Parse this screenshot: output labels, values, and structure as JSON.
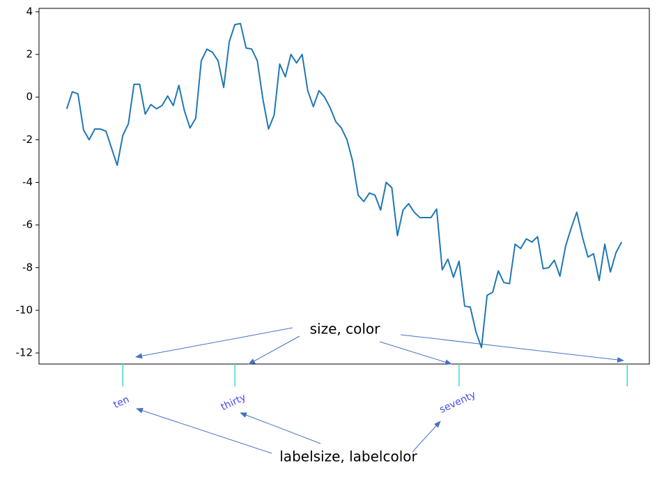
{
  "chart_data": {
    "type": "line",
    "x": [
      0,
      1,
      2,
      3,
      4,
      5,
      6,
      7,
      8,
      9,
      10,
      11,
      12,
      13,
      14,
      15,
      16,
      17,
      18,
      19,
      20,
      21,
      22,
      23,
      24,
      25,
      26,
      27,
      28,
      29,
      30,
      31,
      32,
      33,
      34,
      35,
      36,
      37,
      38,
      39,
      40,
      41,
      42,
      43,
      44,
      45,
      46,
      47,
      48,
      49,
      50,
      51,
      52,
      53,
      54,
      55,
      56,
      57,
      58,
      59,
      60,
      61,
      62,
      63,
      64,
      65,
      66,
      67,
      68,
      69,
      70,
      71,
      72,
      73,
      74,
      75,
      76,
      77,
      78,
      79,
      80,
      81,
      82,
      83,
      84,
      85,
      86,
      87,
      88,
      89,
      90,
      91,
      92,
      93,
      94,
      95,
      96,
      97,
      98,
      99
    ],
    "series": [
      {
        "color": "#1f77b4",
        "values": [
          -0.55,
          0.25,
          0.15,
          -1.55,
          -2.0,
          -1.5,
          -1.5,
          -1.6,
          -2.4,
          -3.2,
          -1.8,
          -1.25,
          0.6,
          0.6,
          -0.8,
          -0.35,
          -0.55,
          -0.4,
          0.05,
          -0.4,
          0.55,
          -0.65,
          -1.45,
          -1.0,
          1.7,
          2.25,
          2.1,
          1.7,
          0.45,
          2.6,
          3.4,
          3.45,
          2.3,
          2.25,
          1.7,
          -0.1,
          -1.5,
          -0.85,
          1.55,
          0.95,
          2.0,
          1.6,
          2.0,
          0.3,
          -0.45,
          0.3,
          0.0,
          -0.5,
          -1.15,
          -1.45,
          -2.0,
          -3.0,
          -4.6,
          -4.9,
          -4.5,
          -4.6,
          -5.3,
          -4.0,
          -4.25,
          -6.5,
          -5.3,
          -5.0,
          -5.4,
          -5.65,
          -5.65,
          -5.65,
          -5.25,
          -8.1,
          -7.6,
          -8.45,
          -7.7,
          -9.8,
          -9.85,
          -11.0,
          -11.75,
          -9.3,
          -9.15,
          -8.15,
          -8.7,
          -8.75,
          -6.9,
          -7.1,
          -6.65,
          -6.8,
          -6.55,
          -8.05,
          -8.0,
          -7.65,
          -8.4,
          -7.0,
          -6.15,
          -5.4,
          -6.55,
          -7.5,
          -7.35,
          -8.6,
          -6.9,
          -8.2,
          -7.3,
          -6.8
        ]
      }
    ],
    "xlim": [
      -4.95,
      103.95
    ],
    "ylim": [
      -12.52,
      4.16
    ],
    "xticks": [
      {
        "value": 10,
        "label": "ten"
      },
      {
        "value": 30,
        "label": "thirty"
      },
      {
        "value": 70,
        "label": "seventy"
      },
      {
        "value": 100,
        "label": null
      }
    ],
    "yticks": [
      -12,
      -10,
      -8,
      -6,
      -4,
      -2,
      0,
      2,
      4
    ],
    "xtick_color": "#40d8d0",
    "xtick_label_color": "#4848f0",
    "annotations": [
      "size, color",
      "labelsize, labelcolor"
    ]
  }
}
